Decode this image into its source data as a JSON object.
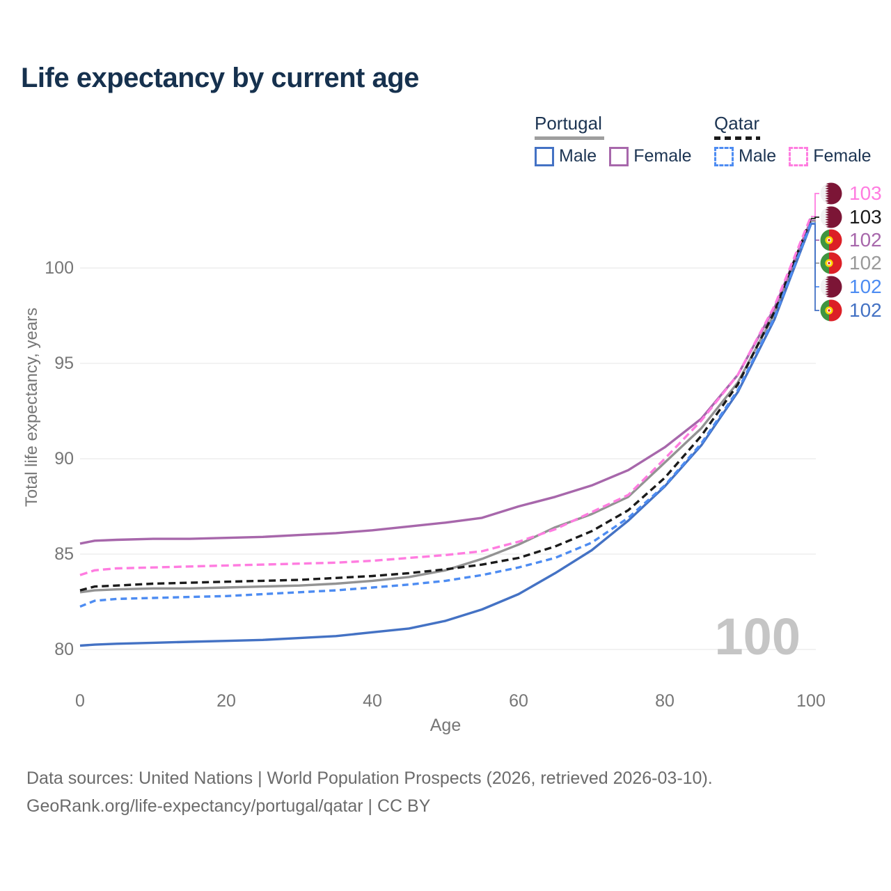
{
  "title": "Life expectancy by current age",
  "legend": {
    "groups": [
      {
        "name": "Portugal",
        "line": "solid",
        "underline_color": "#9e9e9e",
        "items": [
          {
            "label": "Male",
            "color": "#4472c4"
          },
          {
            "label": "Female",
            "color": "#a767ab"
          }
        ]
      },
      {
        "name": "Qatar",
        "line": "dashed",
        "underline_color": "#1b1b1b",
        "items": [
          {
            "label": "Male",
            "color": "#4d8cf2"
          },
          {
            "label": "Female",
            "color": "#ff7ce0"
          }
        ]
      }
    ]
  },
  "axes": {
    "y_title": "Total life expectancy, years",
    "y_ticks": [
      80,
      85,
      90,
      95,
      100
    ],
    "x_ticks": [
      0,
      20,
      40,
      60,
      80,
      100
    ],
    "x_title": "Age"
  },
  "watermark": "100",
  "annotations": {
    "rows": [
      {
        "flag": "qatar",
        "value": "103",
        "color": "#ff7ce0",
        "series": "qatar_female"
      },
      {
        "flag": "qatar",
        "value": "103",
        "color": "#1b1b1b",
        "series": "qatar_both"
      },
      {
        "flag": "portugal",
        "value": "102",
        "color": "#a767ab",
        "series": "portugal_female"
      },
      {
        "flag": "portugal",
        "value": "102",
        "color": "#9a9a9a",
        "series": "portugal_both"
      },
      {
        "flag": "qatar",
        "value": "102",
        "color": "#4d8cf2",
        "series": "qatar_male"
      },
      {
        "flag": "portugal",
        "value": "102",
        "color": "#4472c4",
        "series": "portugal_male"
      }
    ]
  },
  "footer": {
    "line1": "Data sources: United Nations | World Population Prospects (2026, retrieved 2026-03-10).",
    "line2": "GeoRank.org/life-expectancy/portugal/qatar | CC BY"
  },
  "chart_data": {
    "type": "line",
    "xlabel": "Age",
    "ylabel": "Total life expectancy, years",
    "xlim": [
      0,
      100
    ],
    "ylim": [
      79,
      103
    ],
    "grid": "horizontal",
    "x": [
      0,
      2,
      5,
      10,
      15,
      20,
      25,
      30,
      35,
      40,
      45,
      50,
      55,
      60,
      65,
      70,
      75,
      80,
      85,
      90,
      95,
      100
    ],
    "series": [
      {
        "key": "portugal_male",
        "name": "Portugal Male",
        "color": "#4472c4",
        "dash": null,
        "values": [
          80.2,
          80.25,
          80.3,
          80.35,
          80.4,
          80.45,
          80.5,
          80.6,
          80.7,
          80.9,
          81.1,
          81.5,
          82.1,
          82.9,
          84.0,
          85.2,
          86.75,
          88.55,
          90.7,
          93.5,
          97.3,
          102.3
        ]
      },
      {
        "key": "portugal_female",
        "name": "Portugal Female",
        "color": "#a767ab",
        "dash": null,
        "values": [
          85.55,
          85.7,
          85.75,
          85.8,
          85.8,
          85.85,
          85.9,
          86.0,
          86.1,
          86.25,
          86.45,
          86.65,
          86.9,
          87.5,
          88.0,
          88.6,
          89.4,
          90.6,
          92.1,
          94.4,
          97.9,
          102.5
        ]
      },
      {
        "key": "portugal_both",
        "name": "Portugal Both sexes",
        "color": "#939393",
        "dash": null,
        "values": [
          83.0,
          83.1,
          83.15,
          83.2,
          83.2,
          83.25,
          83.3,
          83.35,
          83.45,
          83.6,
          83.8,
          84.15,
          84.75,
          85.5,
          86.4,
          87.1,
          88.0,
          89.8,
          91.6,
          94.0,
          97.6,
          102.45
        ]
      },
      {
        "key": "qatar_male",
        "name": "Qatar Male",
        "color": "#4d8cf2",
        "dash": "9 6",
        "values": [
          82.25,
          82.55,
          82.65,
          82.7,
          82.75,
          82.8,
          82.9,
          83.0,
          83.1,
          83.25,
          83.4,
          83.6,
          83.9,
          84.3,
          84.8,
          85.6,
          86.9,
          88.6,
          90.8,
          93.6,
          97.4,
          102.35
        ]
      },
      {
        "key": "qatar_female",
        "name": "Qatar Female",
        "color": "#ff7ce0",
        "dash": "11 6",
        "values": [
          83.9,
          84.15,
          84.25,
          84.3,
          84.35,
          84.4,
          84.45,
          84.5,
          84.55,
          84.65,
          84.8,
          84.95,
          85.15,
          85.65,
          86.3,
          87.2,
          88.1,
          90.0,
          92.0,
          94.4,
          98.0,
          102.7
        ]
      },
      {
        "key": "qatar_both",
        "name": "Qatar Both sexes",
        "color": "#1b1b1b",
        "dash": "10 6",
        "values": [
          83.1,
          83.3,
          83.35,
          83.45,
          83.5,
          83.55,
          83.6,
          83.65,
          83.75,
          83.85,
          84.0,
          84.2,
          84.45,
          84.8,
          85.4,
          86.2,
          87.3,
          89.0,
          91.2,
          93.9,
          97.7,
          102.6
        ]
      }
    ]
  }
}
